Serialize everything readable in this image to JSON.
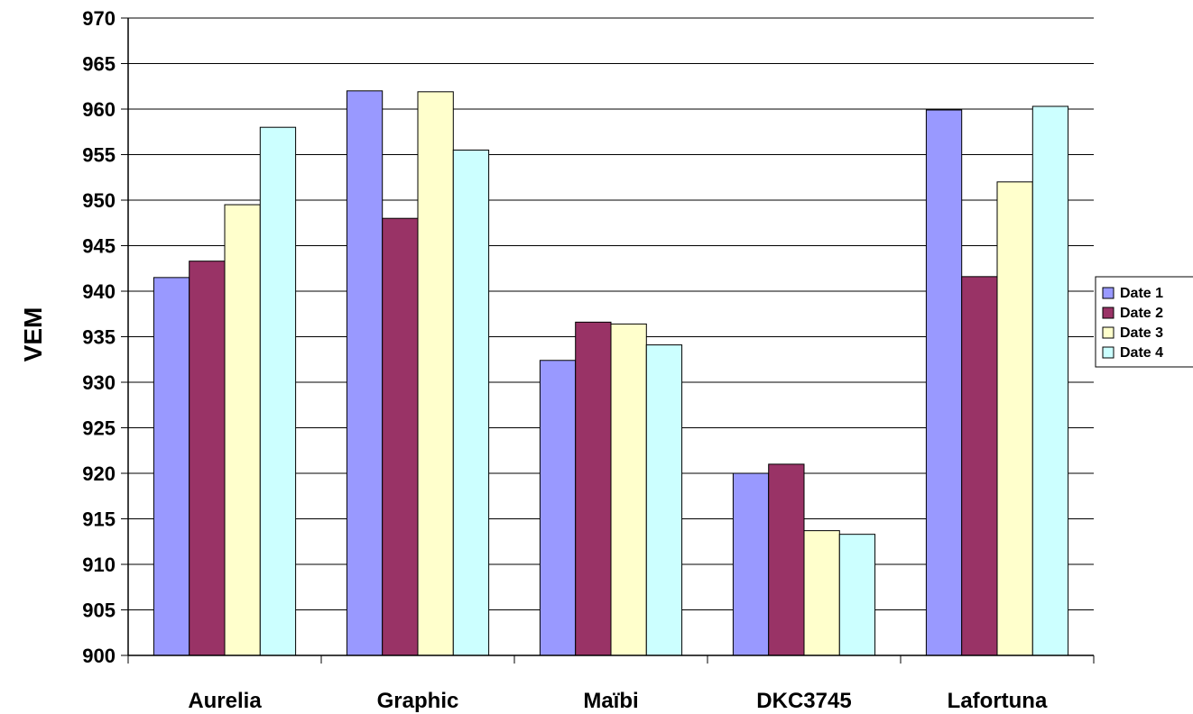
{
  "chart_data": {
    "type": "bar",
    "title": "",
    "xlabel": "",
    "ylabel": "VEM",
    "categories": [
      "Aurelia",
      "Graphic",
      "Maïbi",
      "DKC3745",
      "Lafortuna"
    ],
    "series": [
      {
        "name": "Date 1",
        "color": "#9999ff",
        "values": [
          941.5,
          962.0,
          932.4,
          920.0,
          959.9
        ]
      },
      {
        "name": "Date 2",
        "color": "#993366",
        "values": [
          943.3,
          948.0,
          936.6,
          921.0,
          941.6
        ]
      },
      {
        "name": "Date 3",
        "color": "#ffffcc",
        "values": [
          949.5,
          961.9,
          936.4,
          913.7,
          952.0
        ]
      },
      {
        "name": "Date 4",
        "color": "#ccffff",
        "values": [
          958.0,
          955.5,
          934.1,
          913.3,
          960.3
        ]
      }
    ],
    "ylim": [
      900,
      970
    ],
    "yticks": [
      900,
      905,
      910,
      915,
      920,
      925,
      930,
      935,
      940,
      945,
      950,
      955,
      960,
      965,
      970
    ],
    "grid": true,
    "legend": "right"
  }
}
